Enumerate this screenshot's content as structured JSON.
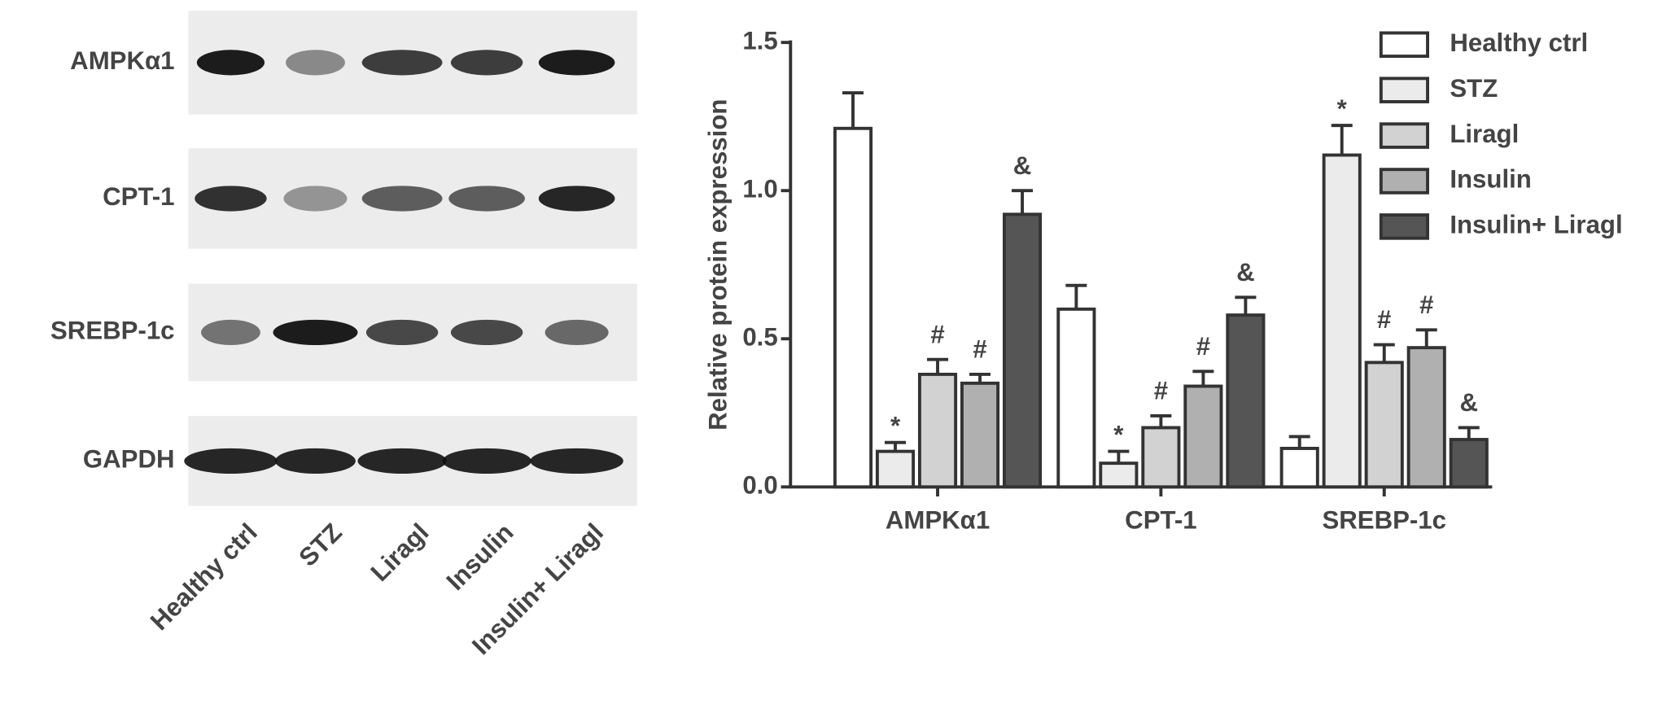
{
  "blot": {
    "rows": [
      "AMPKα1",
      "CPT-1",
      "SREBP-1c",
      "GAPDH"
    ],
    "lanes": [
      "Healthy ctrl",
      "STZ",
      "Liragl",
      "Insulin",
      "Insulin+ Liragl"
    ]
  },
  "chart_data": {
    "type": "bar",
    "y_label": "Relative protein expression",
    "categories": [
      "AMPKα1",
      "CPT-1",
      "SREBP-1c"
    ],
    "ylim": [
      0,
      1.5
    ],
    "yticks": [
      {
        "value": 0,
        "label": "0.0"
      },
      {
        "value": 0.5,
        "label": "0.5"
      },
      {
        "value": 1,
        "label": "1.0"
      },
      {
        "value": 1.5,
        "label": "1.5"
      }
    ],
    "legend": "top-right",
    "series": [
      {
        "name": "Healthy ctrl",
        "color": "#ffffff",
        "values": [
          1.21,
          0.6,
          0.13
        ],
        "errors": [
          0.12,
          0.08,
          0.04
        ],
        "annotations": [
          null,
          null,
          null
        ]
      },
      {
        "name": "STZ",
        "color": "#ebebeb",
        "values": [
          0.12,
          0.08,
          1.12
        ],
        "errors": [
          0.03,
          0.04,
          0.1
        ],
        "annotations": [
          "*",
          "*",
          "*"
        ]
      },
      {
        "name": "Liragl",
        "color": "#d2d2d2",
        "values": [
          0.38,
          0.2,
          0.42
        ],
        "errors": [
          0.05,
          0.04,
          0.06
        ],
        "annotations": [
          "#",
          "#",
          "#"
        ]
      },
      {
        "name": "Insulin",
        "color": "#b0b0b0",
        "values": [
          0.35,
          0.34,
          0.47
        ],
        "errors": [
          0.03,
          0.05,
          0.06
        ],
        "annotations": [
          "#",
          "#",
          "#"
        ]
      },
      {
        "name": "Insulin+ Liragl",
        "color": "#555555",
        "values": [
          0.92,
          0.58,
          0.16
        ],
        "errors": [
          0.08,
          0.06,
          0.04
        ],
        "annotations": [
          "&",
          "&",
          "&"
        ]
      }
    ]
  }
}
